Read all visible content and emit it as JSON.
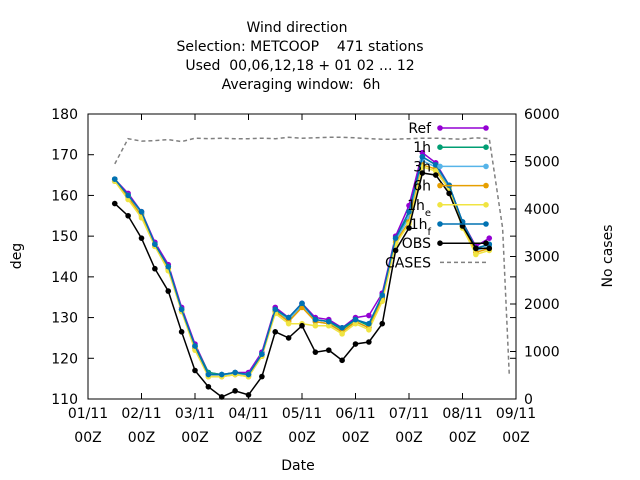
{
  "chart_data": {
    "type": "line",
    "title_lines": [
      "Wind direction",
      "Selection: METCOOP    471 stations",
      "Used  00,06,12,18 + 01 02 ... 12",
      "Averaging window:  6h"
    ],
    "xlabel": "Date",
    "ylabel": "deg",
    "y2label": "No cases",
    "x_ticks": [
      {
        "line1": "01/11",
        "line2": "00Z"
      },
      {
        "line1": "02/11",
        "line2": "00Z"
      },
      {
        "line1": "03/11",
        "line2": "00Z"
      },
      {
        "line1": "04/11",
        "line2": "00Z"
      },
      {
        "line1": "05/11",
        "line2": "00Z"
      },
      {
        "line1": "06/11",
        "line2": "00Z"
      },
      {
        "line1": "07/11",
        "line2": "00Z"
      },
      {
        "line1": "08/11",
        "line2": "00Z"
      },
      {
        "line1": "09/11",
        "line2": "00Z"
      }
    ],
    "xlim_days": [
      0,
      8
    ],
    "ylim": [
      110,
      180
    ],
    "y_ticks": [
      110,
      120,
      130,
      140,
      150,
      160,
      170,
      180
    ],
    "y2lim": [
      0,
      6000
    ],
    "y2_ticks": [
      0,
      1000,
      2000,
      3000,
      4000,
      5000,
      6000
    ],
    "legend_position": "top-right",
    "x_days": [
      0.5,
      0.75,
      1.0,
      1.25,
      1.5,
      1.75,
      2.0,
      2.25,
      2.5,
      2.75,
      3.0,
      3.25,
      3.5,
      3.75,
      4.0,
      4.25,
      4.5,
      4.75,
      5.0,
      5.25,
      5.5,
      5.75,
      6.0,
      6.25,
      6.5,
      6.75,
      7.0,
      7.25,
      7.5,
      7.75,
      7.875
    ],
    "series": [
      {
        "name": "Ref",
        "color": "#9400d3",
        "marker": "plus",
        "axis": "y",
        "values": [
          164,
          160.5,
          156,
          148.5,
          143,
          132.5,
          123.5,
          116.5,
          116,
          116.5,
          116.5,
          121.5,
          132.5,
          130,
          133.5,
          130,
          129.5,
          127.5,
          130,
          130.5,
          136,
          150,
          157.5,
          170.5,
          168,
          162.5,
          153.5,
          147.5,
          149.5,
          null,
          null
        ]
      },
      {
        "name": "1h",
        "color": "#009e73",
        "marker": "plus",
        "axis": "y",
        "values": [
          164,
          160,
          155.5,
          148,
          142.5,
          132,
          123,
          116.5,
          116,
          116.5,
          116,
          121,
          132,
          129.5,
          133,
          129.5,
          129,
          127,
          129.5,
          128,
          135,
          149.5,
          155,
          169.5,
          167.5,
          162.5,
          153.5,
          147,
          148,
          null,
          null
        ]
      },
      {
        "name": "3h",
        "color": "#56b4e9",
        "marker": "plus",
        "axis": "y",
        "values": [
          163.5,
          160,
          155.5,
          148,
          142,
          132,
          122.5,
          116,
          116,
          116,
          116,
          121,
          131.5,
          129.5,
          133,
          129,
          128.5,
          126.5,
          129,
          127.5,
          134.5,
          149,
          154.5,
          168.5,
          167,
          162,
          153,
          146.5,
          147.5,
          null,
          null
        ]
      },
      {
        "name": "6h",
        "color": "#e69f00",
        "marker": "plus",
        "axis": "y",
        "values": [
          163.5,
          159.5,
          155,
          147.5,
          142,
          131.5,
          122.5,
          115.5,
          115.5,
          116,
          115.5,
          120.5,
          131.5,
          129,
          132.5,
          129,
          128.5,
          126.5,
          129,
          127.5,
          134.5,
          148.5,
          153.5,
          167.5,
          166.5,
          161.5,
          152.5,
          146,
          147,
          null,
          null
        ]
      },
      {
        "name": "1h_e",
        "color": "#f0e442",
        "marker": "plus",
        "axis": "y",
        "values": [
          163.5,
          159,
          154.5,
          147.5,
          141.5,
          131.5,
          122,
          115.5,
          115.5,
          116,
          115.5,
          120.5,
          131,
          128.5,
          128.5,
          128,
          128,
          126,
          128.5,
          127,
          134,
          148,
          153,
          167,
          166,
          161.5,
          152,
          145.5,
          146.5,
          null,
          null
        ]
      },
      {
        "name": "1h_f",
        "color": "#0072b2",
        "marker": "plus",
        "axis": "y",
        "values": [
          164,
          160,
          156,
          148,
          142.5,
          132,
          123,
          116,
          116,
          116.5,
          116,
          121,
          132,
          130,
          133.5,
          129.5,
          129,
          127.5,
          129.5,
          128.5,
          135.5,
          149.5,
          156,
          169.5,
          167.5,
          162.5,
          153.5,
          147,
          148,
          null,
          null
        ]
      },
      {
        "name": "OBS",
        "color": "#000000",
        "marker": "plus",
        "axis": "y",
        "values": [
          158,
          155,
          149.5,
          142,
          136.5,
          126.5,
          117,
          113,
          110.5,
          112,
          111,
          115.5,
          126.5,
          125,
          128,
          121.5,
          122,
          119.5,
          123.5,
          124,
          128.5,
          146.5,
          152,
          165.5,
          165,
          160.5,
          152.5,
          147,
          147,
          null,
          null
        ]
      },
      {
        "name": "CASES",
        "color": "#808080",
        "marker": "none",
        "dashed": true,
        "axis": "y2",
        "values": [
          4950,
          5480,
          5430,
          5440,
          5460,
          5420,
          5490,
          5480,
          5490,
          5480,
          5480,
          5490,
          5480,
          5510,
          5490,
          5500,
          5510,
          5510,
          5500,
          5480,
          5470,
          5470,
          5480,
          5490,
          5490,
          5480,
          5470,
          5500,
          5480,
          3600,
          500
        ]
      }
    ]
  }
}
